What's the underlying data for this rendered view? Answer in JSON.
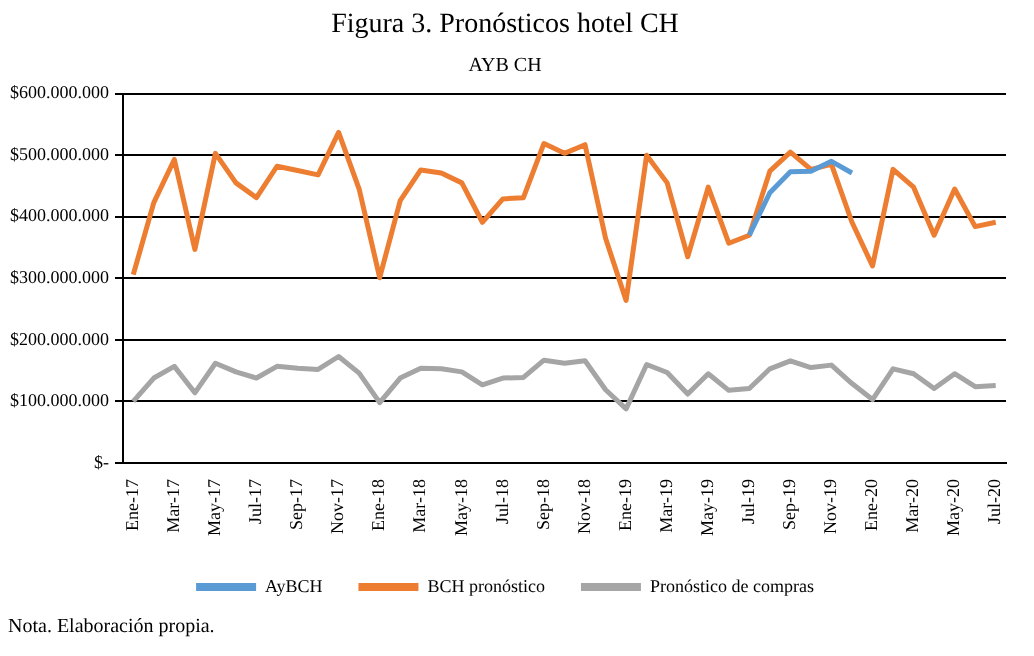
{
  "chart_data": {
    "type": "line",
    "title": "Figura 3. Pronósticos hotel CH",
    "subtitle": "AYB CH",
    "categories": [
      "Ene-17",
      null,
      "Mar-17",
      null,
      "May-17",
      null,
      "Jul-17",
      null,
      "Sep-17",
      null,
      "Nov-17",
      null,
      "Ene-18",
      null,
      "Mar-18",
      null,
      "May-18",
      null,
      "Jul-18",
      null,
      "Sep-18",
      null,
      "Nov-18",
      null,
      "Ene-19",
      null,
      "Mar-19",
      null,
      "May-19",
      null,
      "Jul-19",
      null,
      "Sep-19",
      null,
      "Nov-19",
      null,
      "Ene-20",
      null,
      "Mar-20",
      null,
      "May-20",
      null,
      "Jul-20"
    ],
    "series": [
      {
        "name": "AyBCH",
        "color": "#5b9bd5",
        "values": [
          null,
          null,
          null,
          null,
          null,
          null,
          null,
          null,
          null,
          null,
          null,
          null,
          null,
          null,
          null,
          null,
          null,
          null,
          null,
          null,
          null,
          null,
          null,
          null,
          null,
          null,
          null,
          null,
          null,
          null,
          370000000,
          439000000,
          473000000,
          474000000,
          490000000,
          471000000,
          null,
          null,
          null,
          null,
          null,
          null,
          null
        ]
      },
      {
        "name": "BCH pronóstico",
        "color": "#ed7d31",
        "values": [
          306000000,
          423000000,
          493000000,
          347000000,
          503000000,
          455000000,
          431000000,
          482000000,
          475000000,
          468000000,
          537000000,
          445000000,
          301000000,
          426000000,
          476000000,
          471000000,
          455000000,
          391000000,
          429000000,
          431000000,
          519000000,
          503000000,
          517000000,
          365000000,
          264000000,
          500000000,
          455000000,
          335000000,
          448000000,
          357000000,
          370000000,
          474000000,
          505000000,
          477000000,
          485000000,
          391000000,
          320000000,
          477000000,
          448000000,
          370000000,
          445000000,
          384000000,
          391000000
        ]
      },
      {
        "name": "Pronóstico de compras",
        "color": "#a5a5a5",
        "values": [
          100000000,
          138000000,
          157000000,
          114000000,
          162000000,
          148000000,
          138000000,
          157000000,
          154000000,
          152000000,
          173000000,
          146000000,
          98000000,
          138000000,
          154000000,
          153000000,
          148000000,
          127000000,
          138000000,
          139000000,
          167000000,
          162000000,
          166000000,
          119000000,
          88000000,
          160000000,
          147000000,
          112000000,
          145000000,
          118000000,
          121000000,
          153000000,
          166000000,
          155000000,
          159000000,
          129000000,
          103000000,
          153000000,
          145000000,
          121000000,
          145000000,
          124000000,
          126000000
        ]
      }
    ],
    "ylim": [
      0,
      600000000
    ],
    "yticks": [
      {
        "value": 0,
        "label": "$-"
      },
      {
        "value": 100000000,
        "label": "$100.000.000"
      },
      {
        "value": 200000000,
        "label": "$200.000.000"
      },
      {
        "value": 300000000,
        "label": "$300.000.000"
      },
      {
        "value": 400000000,
        "label": "$400.000.000"
      },
      {
        "value": 500000000,
        "label": "$500.000.000"
      },
      {
        "value": 600000000,
        "label": "$600.000.000"
      }
    ],
    "grid": "y",
    "legend": "bottom",
    "marker": "none",
    "line_style": "solid",
    "annotations": [
      "Nota. Elaboración propia."
    ]
  }
}
